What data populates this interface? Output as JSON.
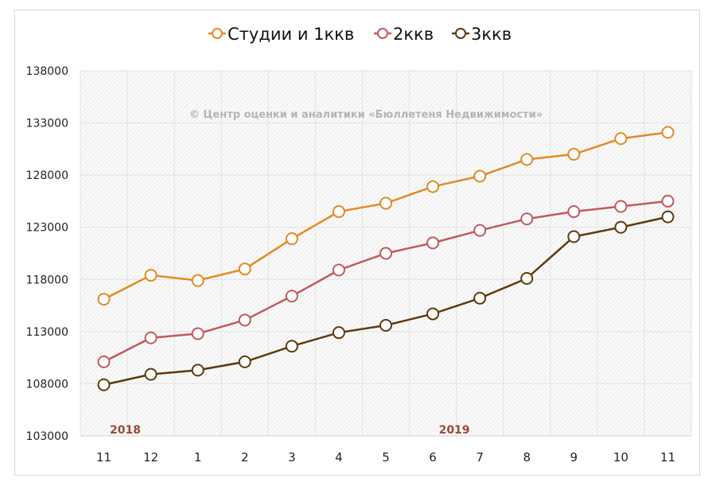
{
  "chart_data": {
    "type": "line",
    "title": "",
    "xlabel": "",
    "ylabel": "",
    "categories": [
      "11",
      "12",
      "1",
      "2",
      "3",
      "4",
      "5",
      "6",
      "7",
      "8",
      "9",
      "10",
      "11"
    ],
    "year_labels": [
      {
        "text": "2018",
        "category_index": 0
      },
      {
        "text": "2019",
        "category_index": 7
      }
    ],
    "ylim": [
      103000,
      138000
    ],
    "yticks": [
      103000,
      108000,
      113000,
      118000,
      123000,
      128000,
      133000,
      138000
    ],
    "ytick_labels": [
      "103000",
      "108000",
      "113000",
      "118000",
      "123000",
      "128000",
      "133000",
      "138000"
    ],
    "grid": true,
    "legend_position": "top",
    "watermark": "© Центр оценки и аналитики «Бюллетеня Недвижимости»",
    "series": [
      {
        "name": "Студии и 1ккв",
        "color": "#E38A24",
        "values": [
          116100,
          118400,
          117900,
          119000,
          121900,
          124500,
          125300,
          126900,
          127900,
          129500,
          130000,
          131500,
          132100
        ]
      },
      {
        "name": "2ккв",
        "color": "#C25A5E",
        "values": [
          110100,
          112400,
          112800,
          114100,
          116400,
          118900,
          120500,
          121500,
          122700,
          123800,
          124500,
          125000,
          125500
        ]
      },
      {
        "name": "3ккв",
        "color": "#5E3A0E",
        "values": [
          107900,
          108900,
          109300,
          110100,
          111600,
          112900,
          113600,
          114700,
          116200,
          118100,
          122100,
          123000,
          124000
        ]
      }
    ]
  }
}
